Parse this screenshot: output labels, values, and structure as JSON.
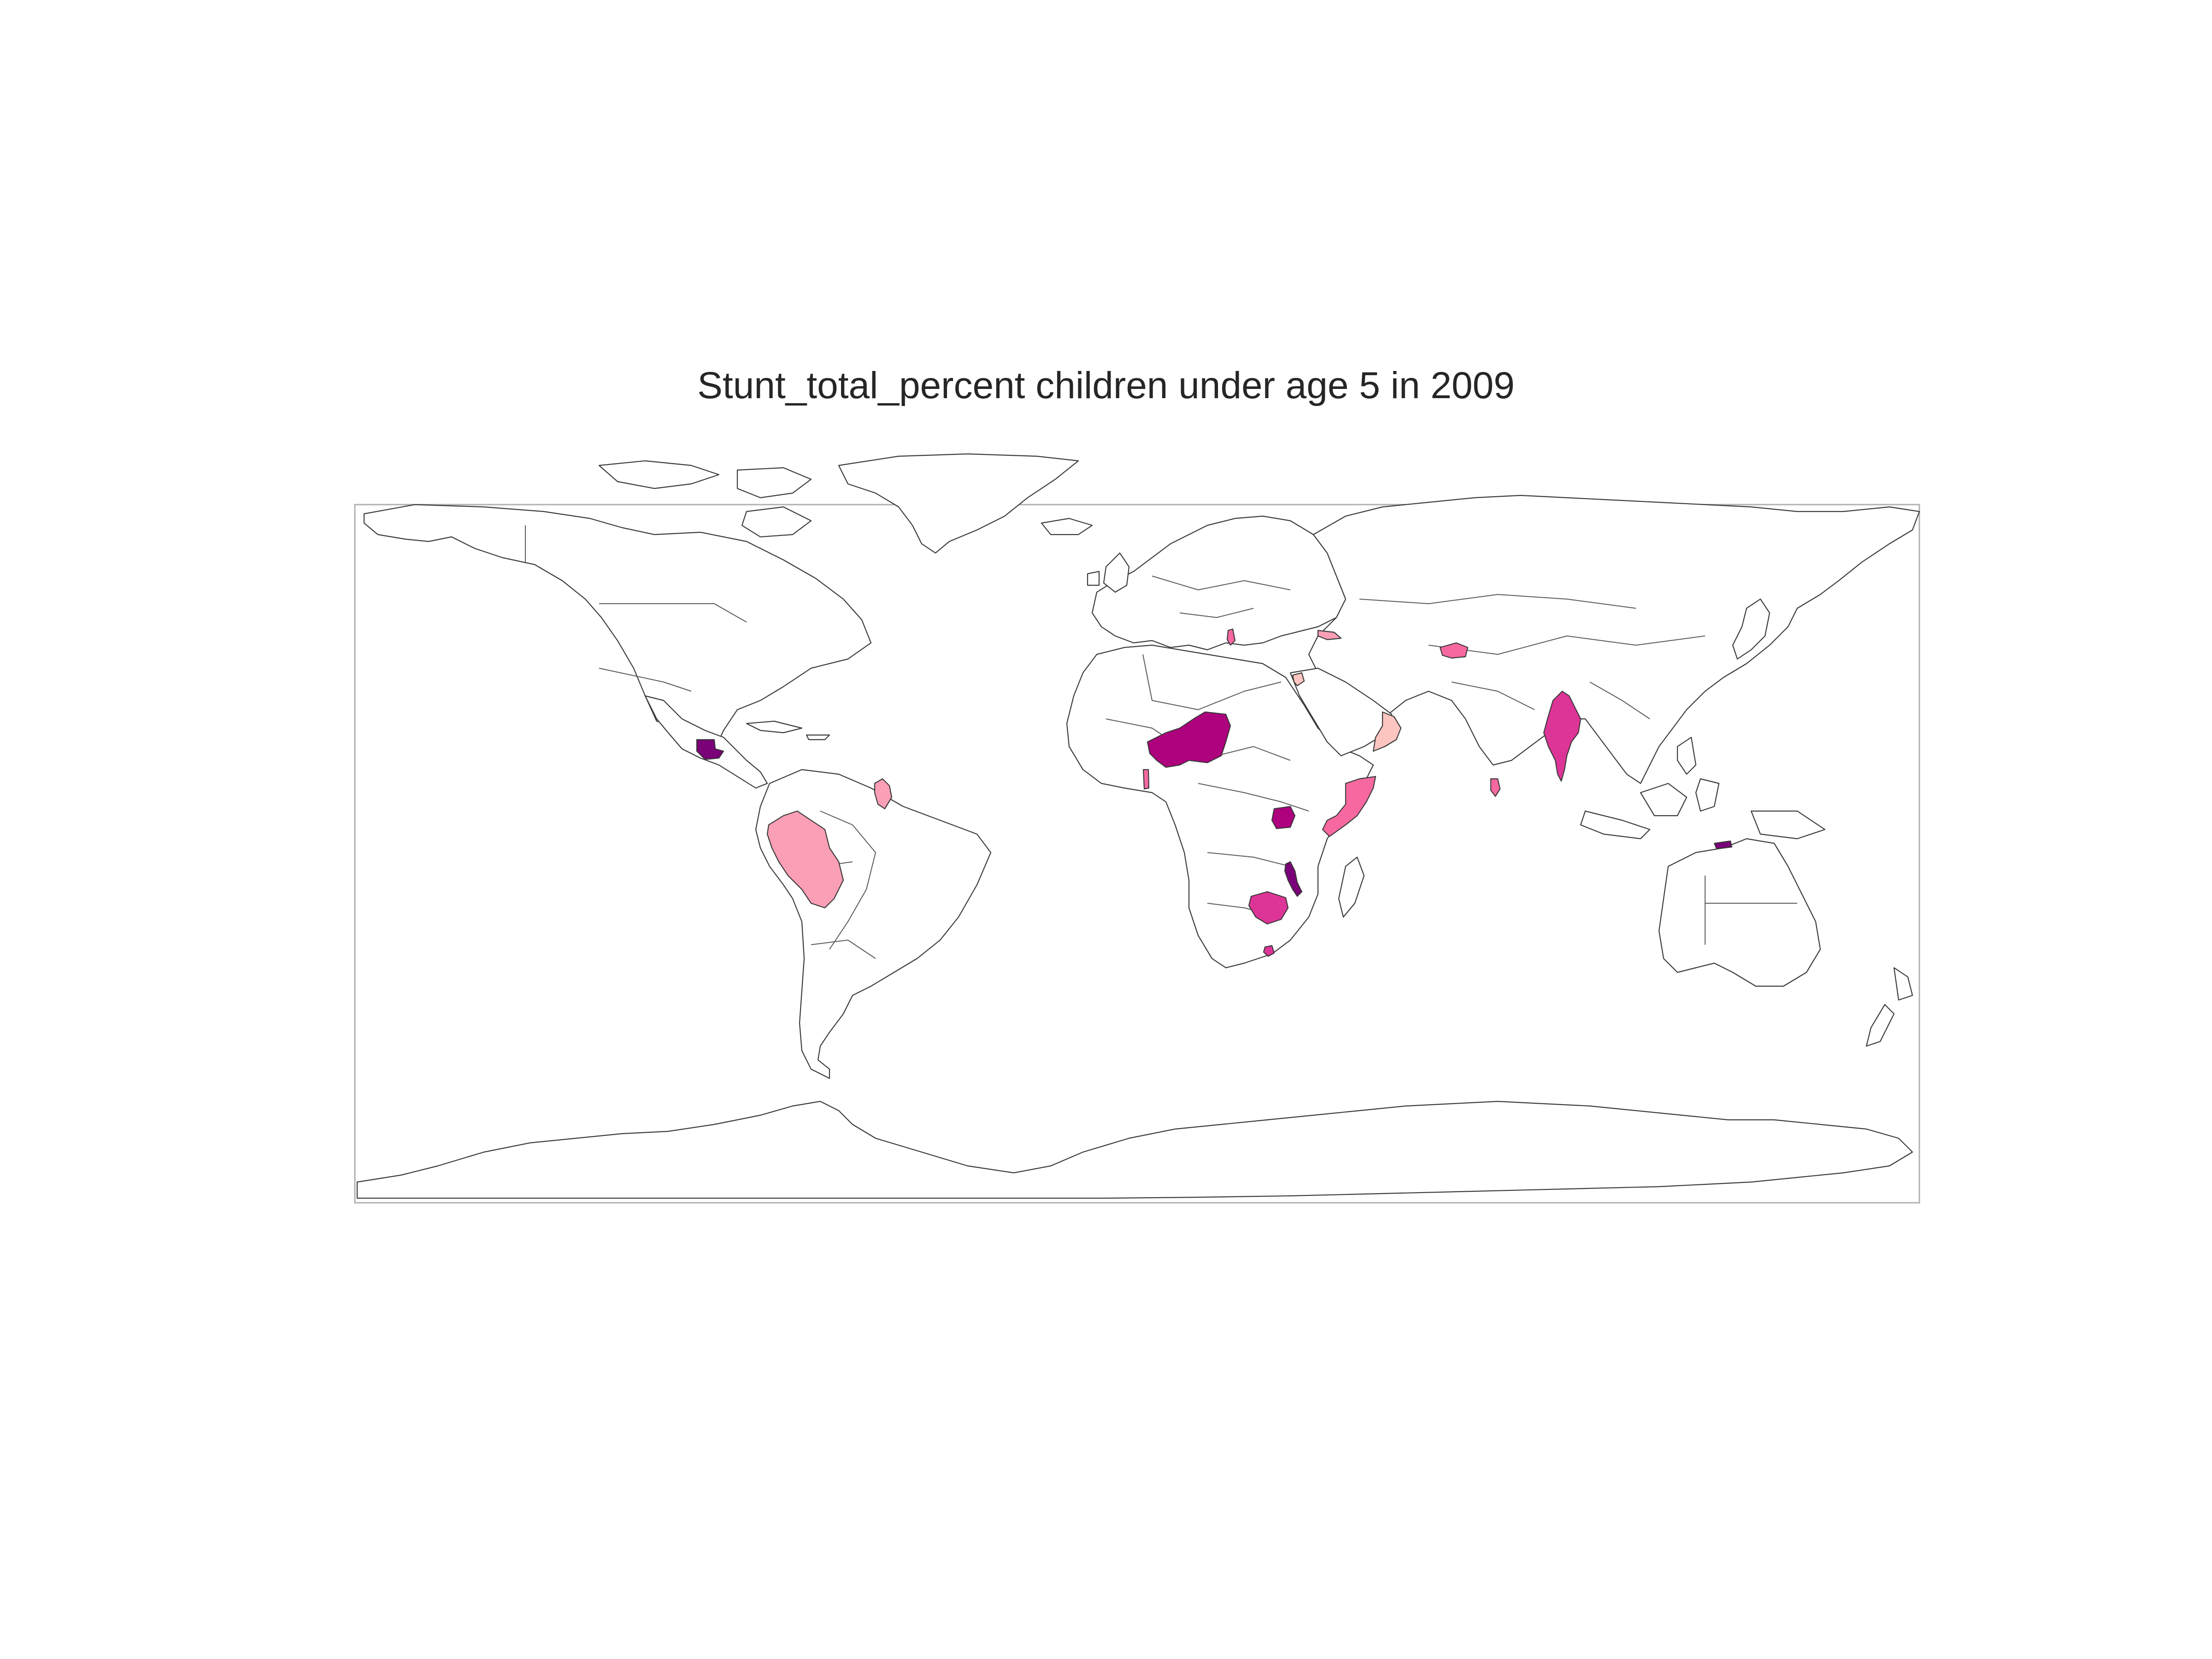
{
  "title": "Stunt_total_percent children under age 5 in 2009",
  "colors": {
    "background": "#ffffff",
    "land": "#ffffff",
    "outline": "#3a3a3a"
  },
  "chart_data": {
    "type": "choropleth",
    "title": "Stunt_total_percent children under age 5 in 2009",
    "color_scale": [
      "#fcc5c0",
      "#fa9fb5",
      "#f768a1",
      "#dd3497",
      "#ae017e",
      "#7a0177"
    ],
    "highlighted_countries": [
      {
        "name": "Guatemala",
        "level": 5
      },
      {
        "name": "Peru",
        "level": 1
      },
      {
        "name": "Guyana",
        "level": 1
      },
      {
        "name": "Niger",
        "level": 4
      },
      {
        "name": "Togo",
        "level": 2
      },
      {
        "name": "Albania",
        "level": 2
      },
      {
        "name": "Georgia",
        "level": 1
      },
      {
        "name": "Jordan",
        "level": 0
      },
      {
        "name": "Oman",
        "level": 0
      },
      {
        "name": "Tajikistan",
        "level": 2
      },
      {
        "name": "Myanmar",
        "level": 3
      },
      {
        "name": "Sri Lanka",
        "level": 2
      },
      {
        "name": "Somalia",
        "level": 2
      },
      {
        "name": "Uganda",
        "level": 4
      },
      {
        "name": "Malawi",
        "level": 5
      },
      {
        "name": "Zimbabwe",
        "level": 3
      },
      {
        "name": "Swaziland",
        "level": 3
      },
      {
        "name": "Timor-Leste",
        "level": 5
      }
    ]
  }
}
